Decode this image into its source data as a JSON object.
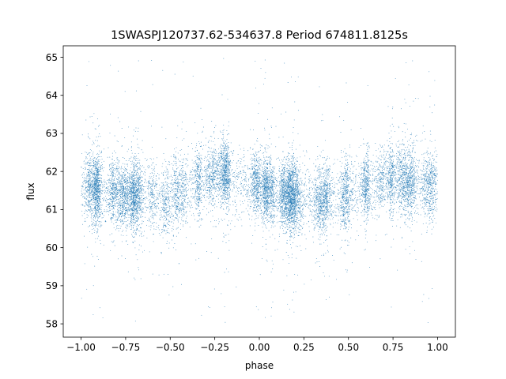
{
  "chart_data": {
    "type": "scatter",
    "title": "1SWASPJ120737.62-534637.8 Period 674811.8125s",
    "xlabel": "phase",
    "ylabel": "flux",
    "xlim": [
      -1.1,
      1.1
    ],
    "ylim": [
      57.65,
      65.3
    ],
    "x_ticks": [
      -1.0,
      -0.75,
      -0.5,
      -0.25,
      0.0,
      0.25,
      0.5,
      0.75,
      1.0
    ],
    "x_tick_labels": [
      "−1.00",
      "−0.75",
      "−0.50",
      "−0.25",
      "0.00",
      "0.25",
      "0.50",
      "0.75",
      "1.00"
    ],
    "y_ticks": [
      58,
      59,
      60,
      61,
      62,
      63,
      64,
      65
    ],
    "y_tick_labels": [
      "58",
      "59",
      "60",
      "61",
      "62",
      "63",
      "64",
      "65"
    ],
    "grid": false,
    "legend": "none",
    "point_color": "#1f77b4",
    "series": [
      {
        "x_range": [
          -1.0,
          1.0
        ],
        "central_flux": 61.5,
        "typical_flux_range": [
          60.0,
          63.0
        ],
        "total_flux_range": [
          58.0,
          65.0
        ],
        "profile_phase": [
          -1.0,
          -0.75,
          -0.5,
          -0.25,
          0.0,
          0.25,
          0.5,
          0.75,
          1.0
        ],
        "profile_flux": [
          61.6,
          61.3,
          61.3,
          61.9,
          61.6,
          61.2,
          61.4,
          61.8,
          61.6
        ]
      }
    ]
  }
}
